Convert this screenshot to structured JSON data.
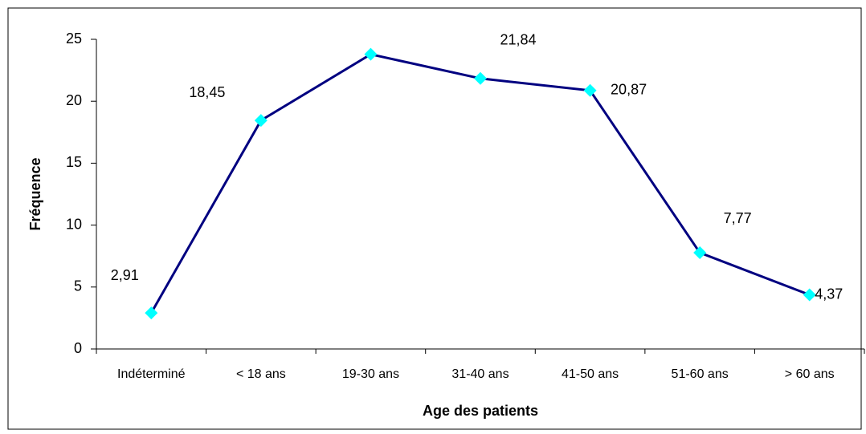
{
  "chart_data": {
    "type": "line",
    "x_label": "Age des patients",
    "y_label": "Fréquence",
    "categories": [
      "Indéterminé",
      "< 18 ans",
      "19-30 ans",
      "31-40 ans",
      "41-50 ans",
      "51-60 ans",
      "> 60 ans"
    ],
    "values": [
      2.91,
      18.45,
      23.79,
      21.84,
      20.87,
      7.77,
      4.37
    ],
    "value_labels": [
      "2,91",
      "18,45",
      null,
      "21,84",
      "20,87",
      "7,77",
      "4,37"
    ],
    "color": "#000080",
    "marker_color": "#00ffff",
    "ylim": [
      0,
      25
    ],
    "yticks": [
      0,
      5,
      10,
      15,
      20,
      25
    ],
    "grid": false
  }
}
